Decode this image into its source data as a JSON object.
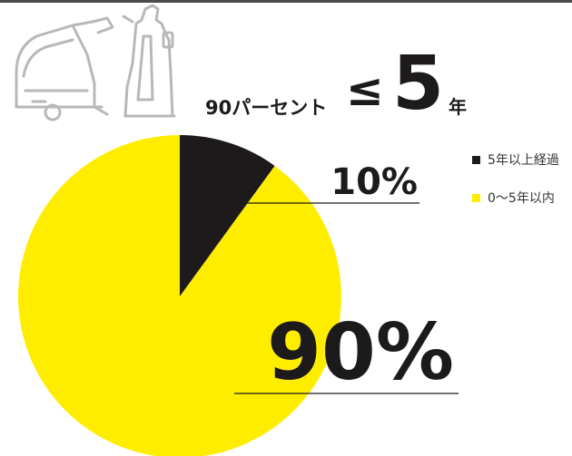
{
  "header": {
    "prefix": "90パーセント",
    "sign": "≤",
    "number": "5",
    "unit": "年"
  },
  "icons": {
    "scrubber": "floor-scrubber-icon",
    "vacuum": "upright-vacuum-icon"
  },
  "chart_data": {
    "type": "pie",
    "slices": [
      {
        "label": "5年以上経過",
        "value": 10,
        "display": "10%",
        "color": "#1d1a1b"
      },
      {
        "label": "0〜5年以内",
        "value": 90,
        "display": "90%",
        "color": "#ffed00"
      }
    ],
    "start_angle_deg": 0,
    "direction": "clockwise",
    "legend_position": "top-right"
  },
  "colors": {
    "accent_yellow": "#ffed00",
    "dark": "#1d1a1b",
    "icon_gray": "#b8b8b8",
    "rule": "#4a4a4a"
  }
}
